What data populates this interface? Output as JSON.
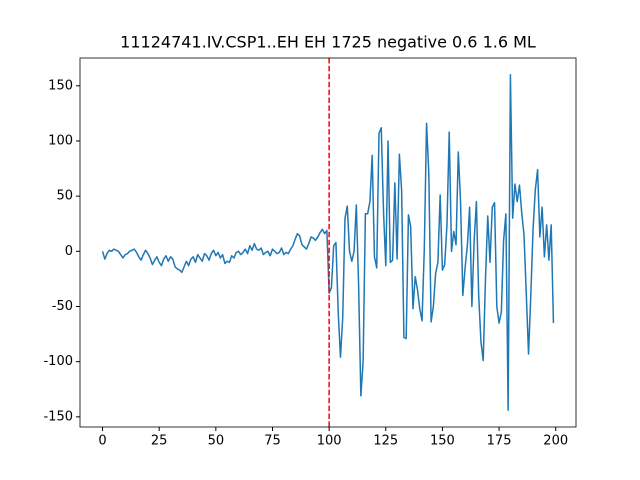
{
  "chart_data": {
    "type": "line",
    "title": "11124741.IV.CSP1..EH EH 1725 negative 0.6 1.6 ML",
    "x": [
      0,
      1,
      2,
      3,
      4,
      5,
      6,
      7,
      8,
      9,
      10,
      11,
      12,
      13,
      14,
      15,
      16,
      17,
      18,
      19,
      20,
      21,
      22,
      23,
      24,
      25,
      26,
      27,
      28,
      29,
      30,
      31,
      32,
      33,
      34,
      35,
      36,
      37,
      38,
      39,
      40,
      41,
      42,
      43,
      44,
      45,
      46,
      47,
      48,
      49,
      50,
      51,
      52,
      53,
      54,
      55,
      56,
      57,
      58,
      59,
      60,
      61,
      62,
      63,
      64,
      65,
      66,
      67,
      68,
      69,
      70,
      71,
      72,
      73,
      74,
      75,
      76,
      77,
      78,
      79,
      80,
      81,
      82,
      83,
      84,
      85,
      86,
      87,
      88,
      89,
      90,
      91,
      92,
      93,
      94,
      95,
      96,
      97,
      98,
      99,
      100,
      101,
      102,
      103,
      104,
      105,
      106,
      107,
      108,
      109,
      110,
      111,
      112,
      113,
      114,
      115,
      116,
      117,
      118,
      119,
      120,
      121,
      122,
      123,
      124,
      125,
      126,
      127,
      128,
      129,
      130,
      131,
      132,
      133,
      134,
      135,
      136,
      137,
      138,
      139,
      140,
      141,
      142,
      143,
      144,
      145,
      146,
      147,
      148,
      149,
      150,
      151,
      152,
      153,
      154,
      155,
      156,
      157,
      158,
      159,
      160,
      161,
      162,
      163,
      164,
      165,
      166,
      167,
      168,
      169,
      170,
      171,
      172,
      173,
      174,
      175,
      176,
      177,
      178,
      179,
      180,
      181,
      182,
      183,
      184,
      185,
      186,
      187,
      188,
      189,
      190,
      191,
      192,
      193,
      194,
      195,
      196,
      197,
      198,
      199
    ],
    "series": [
      {
        "color": "#1f77b4",
        "values": [
          0,
          -7,
          -2,
          1,
          0,
          2,
          1,
          0,
          -3,
          -6,
          -3,
          -2,
          0,
          1,
          2,
          -1,
          -5,
          -8,
          -3,
          1,
          -2,
          -6,
          -12,
          -8,
          -5,
          -10,
          -13,
          -7,
          -4,
          -9,
          -5,
          -7,
          -14,
          -16,
          -17,
          -19,
          -14,
          -9,
          -13,
          -7,
          -5,
          -10,
          -3,
          -6,
          -9,
          -2,
          -4,
          -8,
          -2,
          1,
          -4,
          -1,
          -6,
          -3,
          -11,
          -9,
          -10,
          -4,
          -6,
          -1,
          0,
          -3,
          -1,
          2,
          -2,
          5,
          1,
          7,
          2,
          1,
          3,
          -3,
          -1,
          0,
          -4,
          2,
          0,
          -2,
          -1,
          3,
          -3,
          -1,
          -2,
          2,
          5,
          11,
          16,
          14,
          6,
          4,
          2,
          7,
          13,
          12,
          10,
          13,
          17,
          20,
          16,
          19,
          -38,
          -33,
          5,
          8,
          -55,
          -96,
          -60,
          30,
          41,
          0,
          -9,
          0,
          42,
          -30,
          -131,
          -100,
          34,
          34,
          45,
          87,
          -5,
          -15,
          107,
          112,
          36,
          -13,
          100,
          -10,
          -8,
          62,
          -7,
          88,
          55,
          -78,
          -79,
          33,
          22,
          -52,
          -23,
          -35,
          -52,
          -63,
          2,
          116,
          70,
          -64,
          -50,
          -20,
          -10,
          51,
          -17,
          -12,
          24,
          108,
          0,
          18,
          6,
          90,
          45,
          -40,
          -15,
          5,
          40,
          -50,
          10,
          45,
          -40,
          -82,
          -99,
          -25,
          32,
          -10,
          40,
          44,
          -50,
          -65,
          -55,
          10,
          34,
          -144,
          160,
          30,
          61,
          45,
          60,
          35,
          15,
          -38,
          -93,
          -40,
          20,
          56,
          74,
          13,
          40,
          -5,
          24,
          -8,
          24,
          -65
        ]
      }
    ],
    "vlines": [
      {
        "x": 100,
        "color": "#ff0000",
        "style": "dashed"
      }
    ],
    "xlim": [
      -9.95,
      208.95
    ],
    "xticks": [
      0,
      25,
      50,
      75,
      100,
      125,
      150,
      175,
      200
    ],
    "ylim": [
      -159.2,
      175.2
    ],
    "yticks": [
      -150,
      -100,
      -50,
      0,
      50,
      100,
      150
    ],
    "grid": false
  }
}
